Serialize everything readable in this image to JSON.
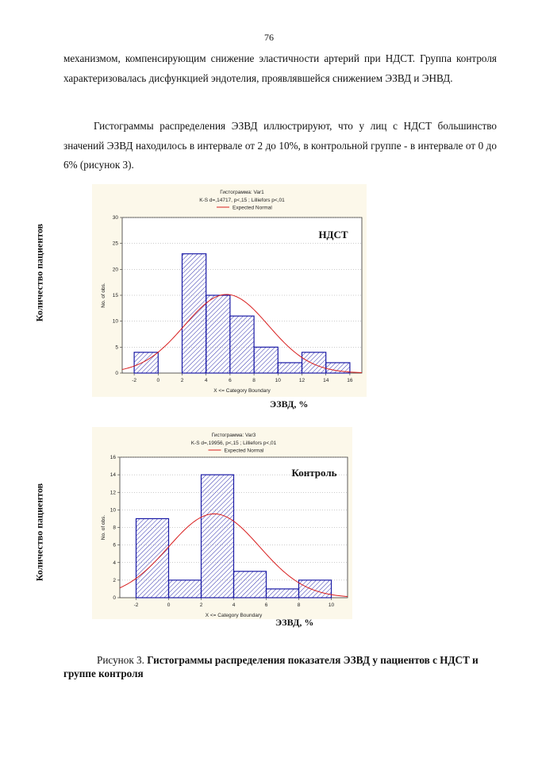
{
  "page_number": "76",
  "paragraph1": "механизмом, компенсирующим снижение эластичности артерий при НДСТ. Группа контроля характеризовалась дисфункцией эндотелия, проявлявшейся снижением ЭЗВД и ЭНВД.",
  "paragraph2": "Гистограммы распределения ЭЗВД иллюстрируют, что у лиц с НДСТ большинство значений ЭЗВД находилось в интервале от 2 до 10%, в контрольной группе - в интервале от 0 до 6% (рисунок 3).",
  "figure_ylabel_outer": "Количество пациентов",
  "figure_xlabel_outer": "ЭЗВД, %",
  "caption_prefix": "Рисунок 3.",
  "caption_bold": "Гистограммы распределения показателя ЭЗВД у пациентов с НДСТ и группе контроля",
  "colors": {
    "bar_stroke": "#1a1aa6",
    "normal_curve": "#d81e1e",
    "panel_bg": "#fcf8ea",
    "grid": "#999999"
  },
  "chart_data": [
    {
      "type": "bar",
      "title": "Гистограмма: Var1",
      "subtitle": "K-S d=,14717, p<,15 ; Lilliefors p<,01",
      "legend": [
        "Expected Normal"
      ],
      "panel_label": "НДСТ",
      "ylabel": "No. of obs.",
      "xlabel": "X <= Category Boundary",
      "bin_edges": [
        -2,
        0,
        2,
        4,
        6,
        8,
        10,
        12,
        14,
        16
      ],
      "values": [
        4,
        0,
        23,
        15,
        11,
        5,
        2,
        4,
        2
      ],
      "normal_curve": {
        "mean": 5.7,
        "sd": 3.5,
        "scale": 133
      },
      "xlim": [
        -3,
        17
      ],
      "ylim": [
        0,
        30
      ],
      "xticks": [
        -2,
        0,
        2,
        4,
        6,
        8,
        10,
        12,
        14,
        16
      ],
      "yticks": [
        0,
        5,
        10,
        15,
        20,
        25,
        30
      ],
      "grid": true
    },
    {
      "type": "bar",
      "title": "Гистограмма: Var3",
      "subtitle": "K-S d=,19956, p<,15 ; Lilliefors p<,01",
      "legend": [
        "Expected Normal"
      ],
      "panel_label": "Контроль",
      "ylabel": "No. of obs.",
      "xlabel": "X <= Category Boundary",
      "bin_edges": [
        -2,
        0,
        2,
        4,
        6,
        8,
        10
      ],
      "values": [
        9,
        2,
        14,
        3,
        1,
        2
      ],
      "normal_curve": {
        "mean": 2.8,
        "sd": 2.8,
        "scale": 67
      },
      "xlim": [
        -3,
        11
      ],
      "ylim": [
        0,
        16
      ],
      "xticks": [
        -2,
        0,
        2,
        4,
        6,
        8,
        10
      ],
      "yticks": [
        0,
        2,
        4,
        6,
        8,
        10,
        12,
        14,
        16
      ],
      "grid": true
    }
  ]
}
